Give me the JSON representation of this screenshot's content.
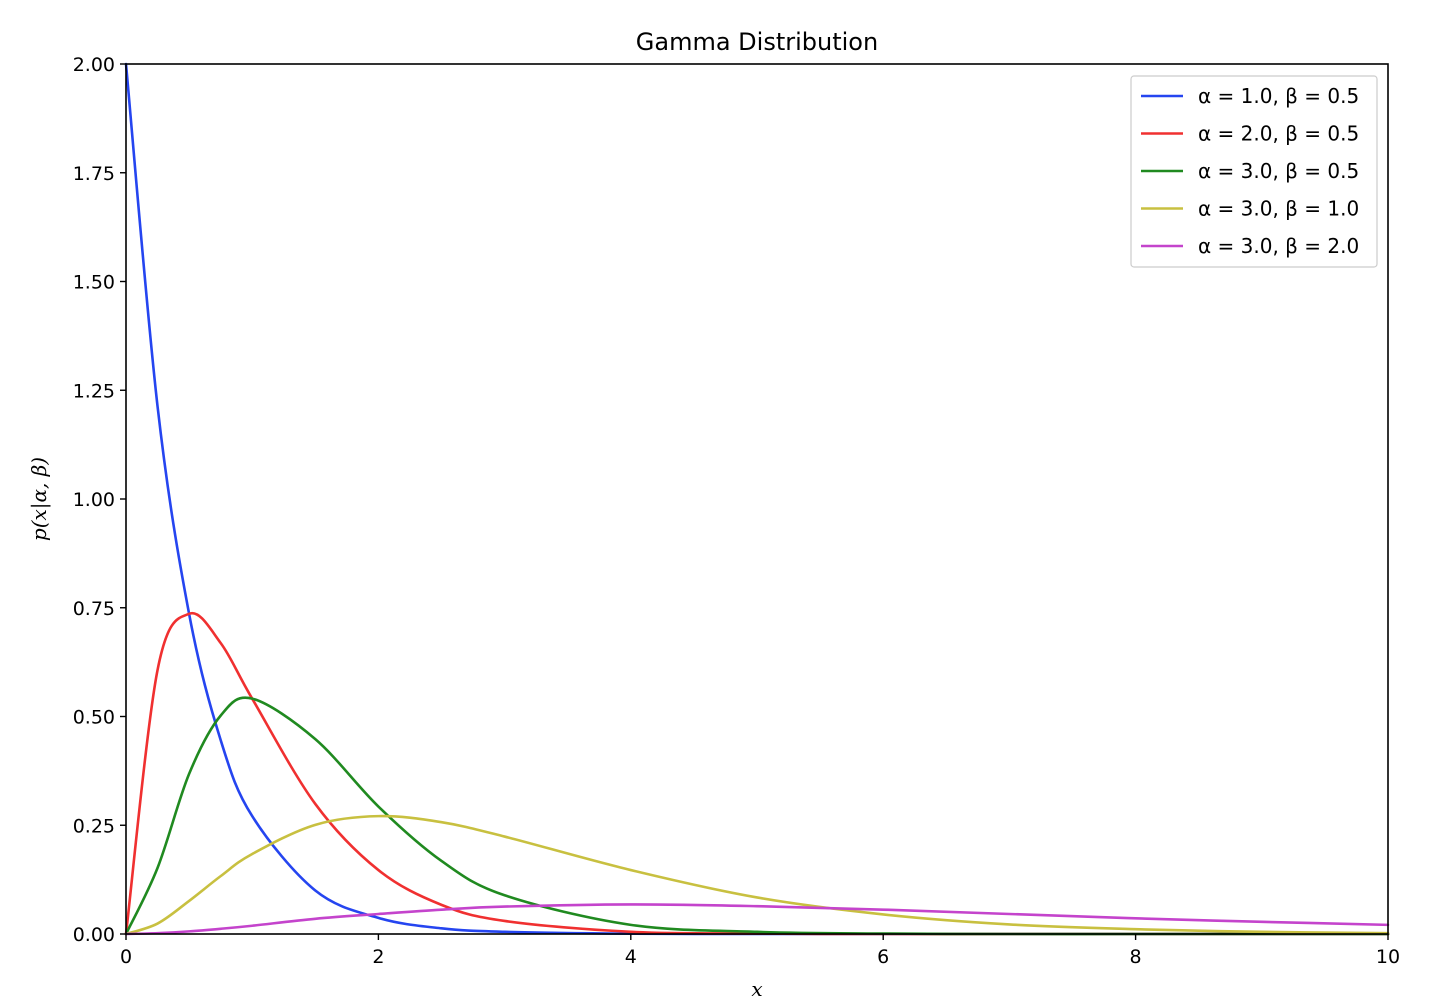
{
  "chart_data": {
    "type": "line",
    "title": "Gamma Distribution",
    "xlabel": "x",
    "ylabel": "p(x|α, β)",
    "xlim": [
      0,
      10
    ],
    "ylim": [
      0,
      2.0
    ],
    "x_ticks": [
      0,
      2,
      4,
      6,
      8,
      10
    ],
    "x_tick_labels": [
      "0",
      "2",
      "4",
      "6",
      "8",
      "10"
    ],
    "y_ticks": [
      0,
      0.25,
      0.5,
      0.75,
      1.0,
      1.25,
      1.5,
      1.75,
      2.0
    ],
    "y_tick_labels": [
      "0.00",
      "0.25",
      "0.50",
      "0.75",
      "1.00",
      "1.25",
      "1.50",
      "1.75",
      "2.00"
    ],
    "grid": false,
    "legend_position": "top-right",
    "x": [
      0,
      0.25,
      0.5,
      0.75,
      1,
      1.5,
      2,
      2.5,
      3,
      4,
      5,
      6,
      7,
      8,
      9,
      10
    ],
    "series": [
      {
        "name": "α = 1.0, β = 0.5",
        "color": "#2545f0",
        "values": [
          2.0,
          1.213,
          0.736,
          0.446,
          0.271,
          0.1,
          0.037,
          0.013,
          0.005,
          0.0007,
          0.0001,
          0.0,
          0.0,
          0.0,
          0.0,
          0.0
        ]
      },
      {
        "name": "α = 2.0, β = 0.5",
        "color": "#f03030",
        "values": [
          0.0,
          0.607,
          0.736,
          0.669,
          0.541,
          0.299,
          0.147,
          0.067,
          0.03,
          0.005,
          0.001,
          0.0,
          0.0,
          0.0,
          0.0,
          0.0
        ]
      },
      {
        "name": "α = 3.0, β = 0.5",
        "color": "#208a20",
        "values": [
          0.0,
          0.152,
          0.368,
          0.502,
          0.541,
          0.448,
          0.293,
          0.168,
          0.089,
          0.021,
          0.005,
          0.001,
          0.0,
          0.0,
          0.0,
          0.0
        ]
      },
      {
        "name": "α = 3.0, β = 1.0",
        "color": "#c8c040",
        "values": [
          0.0,
          0.024,
          0.076,
          0.133,
          0.184,
          0.251,
          0.271,
          0.257,
          0.224,
          0.147,
          0.084,
          0.045,
          0.022,
          0.011,
          0.005,
          0.002
        ]
      },
      {
        "name": "α = 3.0, β = 2.0",
        "color": "#c444cc",
        "values": [
          0.0,
          0.002,
          0.006,
          0.012,
          0.019,
          0.035,
          0.046,
          0.056,
          0.063,
          0.068,
          0.064,
          0.056,
          0.046,
          0.036,
          0.028,
          0.021
        ]
      }
    ]
  }
}
